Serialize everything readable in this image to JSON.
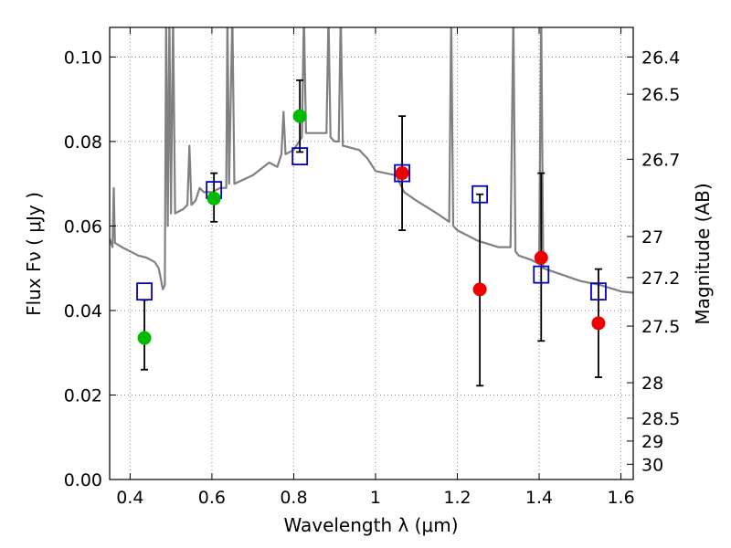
{
  "chart_data": {
    "type": "scatter",
    "title": "",
    "xlabel": "Wavelength  λ (μm)",
    "ylabel": "Flux  Fν  ( μJy )",
    "y2label": "Magnitude (AB)",
    "xlim": [
      0.35,
      1.63
    ],
    "ylim": [
      0.0,
      0.107
    ],
    "grid": true,
    "x_ticks": [
      0.4,
      0.6,
      0.8,
      1.0,
      1.2,
      1.4,
      1.6
    ],
    "x_tick_labels": [
      "0.4",
      "0.6",
      "0.8",
      "1",
      "1.2",
      "1.4",
      "1.6"
    ],
    "y_ticks": [
      0.0,
      0.02,
      0.04,
      0.06,
      0.08,
      0.1
    ],
    "y_tick_labels": [
      "0.00",
      "0.02",
      "0.04",
      "0.06",
      "0.08",
      "0.10"
    ],
    "y2_ticks": [
      {
        "flux": 0.1,
        "label": "26.4"
      },
      {
        "flux": 0.0912,
        "label": "26.5"
      },
      {
        "flux": 0.0758,
        "label": "26.7"
      },
      {
        "flux": 0.0575,
        "label": "27"
      },
      {
        "flux": 0.0478,
        "label": "27.2"
      },
      {
        "flux": 0.0363,
        "label": "27.5"
      },
      {
        "flux": 0.0229,
        "label": "28"
      },
      {
        "flux": 0.0145,
        "label": "28.5"
      },
      {
        "flux": 0.0091,
        "label": "29"
      },
      {
        "flux": 0.0036,
        "label": "30"
      }
    ],
    "colors": {
      "model": "#808080",
      "detected": "#00bb00",
      "measured": "#ee0000",
      "model_photometry": "#0000cc",
      "errorbar": "#000000",
      "grid": "#888888"
    },
    "series": [
      {
        "kind": "line",
        "points": [
          [
            0.35,
            0.057
          ],
          [
            0.357,
            0.055
          ],
          [
            0.36,
            0.069
          ],
          [
            0.363,
            0.056
          ],
          [
            0.38,
            0.055
          ],
          [
            0.4,
            0.054
          ],
          [
            0.42,
            0.053
          ],
          [
            0.44,
            0.0525
          ],
          [
            0.46,
            0.0515
          ],
          [
            0.47,
            0.05
          ],
          [
            0.48,
            0.045
          ],
          [
            0.485,
            0.046
          ],
          [
            0.488,
            0.11
          ],
          [
            0.492,
            0.06
          ],
          [
            0.496,
            0.11
          ],
          [
            0.5,
            0.063
          ],
          [
            0.505,
            0.11
          ],
          [
            0.51,
            0.063
          ],
          [
            0.53,
            0.064
          ],
          [
            0.54,
            0.065
          ],
          [
            0.545,
            0.079
          ],
          [
            0.55,
            0.065
          ],
          [
            0.56,
            0.066
          ],
          [
            0.57,
            0.069
          ],
          [
            0.58,
            0.068
          ],
          [
            0.6,
            0.068
          ],
          [
            0.62,
            0.069
          ],
          [
            0.635,
            0.069
          ],
          [
            0.638,
            0.11
          ],
          [
            0.642,
            0.07
          ],
          [
            0.65,
            0.11
          ],
          [
            0.655,
            0.07
          ],
          [
            0.7,
            0.072
          ],
          [
            0.74,
            0.075
          ],
          [
            0.76,
            0.074
          ],
          [
            0.77,
            0.077
          ],
          [
            0.775,
            0.087
          ],
          [
            0.78,
            0.077
          ],
          [
            0.8,
            0.078
          ],
          [
            0.82,
            0.081
          ],
          [
            0.825,
            0.11
          ],
          [
            0.83,
            0.082
          ],
          [
            0.87,
            0.082
          ],
          [
            0.88,
            0.082
          ],
          [
            0.885,
            0.11
          ],
          [
            0.89,
            0.081
          ],
          [
            0.9,
            0.08
          ],
          [
            0.91,
            0.08
          ],
          [
            0.915,
            0.11
          ],
          [
            0.92,
            0.079
          ],
          [
            0.96,
            0.078
          ],
          [
            0.98,
            0.076
          ],
          [
            1.0,
            0.073
          ],
          [
            1.05,
            0.072
          ],
          [
            1.07,
            0.068
          ],
          [
            1.1,
            0.066
          ],
          [
            1.15,
            0.063
          ],
          [
            1.18,
            0.061
          ],
          [
            1.185,
            0.11
          ],
          [
            1.19,
            0.06
          ],
          [
            1.2,
            0.059
          ],
          [
            1.25,
            0.0565
          ],
          [
            1.3,
            0.055
          ],
          [
            1.33,
            0.055
          ],
          [
            1.337,
            0.11
          ],
          [
            1.342,
            0.054
          ],
          [
            1.35,
            0.053
          ],
          [
            1.38,
            0.052
          ],
          [
            1.4,
            0.051
          ],
          [
            1.405,
            0.11
          ],
          [
            1.41,
            0.05
          ],
          [
            1.44,
            0.049
          ],
          [
            1.5,
            0.047
          ],
          [
            1.55,
            0.046
          ],
          [
            1.6,
            0.0445
          ],
          [
            1.63,
            0.0442
          ]
        ]
      },
      {
        "kind": "points",
        "marker": "circle",
        "points": [
          [
            0.435,
            0.0335
          ],
          [
            0.605,
            0.0665
          ],
          [
            0.815,
            0.086
          ]
        ]
      },
      {
        "kind": "points",
        "marker": "circle",
        "points": [
          [
            1.065,
            0.0725
          ],
          [
            1.255,
            0.045
          ],
          [
            1.405,
            0.0525
          ],
          [
            1.545,
            0.037
          ]
        ]
      },
      {
        "kind": "points",
        "marker": "open-square",
        "points": [
          [
            0.435,
            0.0445
          ],
          [
            0.605,
            0.0685
          ],
          [
            0.815,
            0.0765
          ],
          [
            1.065,
            0.0725
          ],
          [
            1.255,
            0.0675
          ],
          [
            1.405,
            0.0485
          ],
          [
            1.545,
            0.0445
          ]
        ]
      },
      {
        "kind": "errorbars",
        "points": [
          {
            "x": 0.435,
            "low": 0.026,
            "high": 0.0425
          },
          {
            "x": 0.605,
            "low": 0.061,
            "high": 0.0725
          },
          {
            "x": 0.815,
            "low": 0.0775,
            "high": 0.0945
          },
          {
            "x": 1.065,
            "low": 0.059,
            "high": 0.086
          },
          {
            "x": 1.255,
            "low": 0.0222,
            "high": 0.0675
          },
          {
            "x": 1.405,
            "low": 0.0328,
            "high": 0.0725
          },
          {
            "x": 1.545,
            "low": 0.0242,
            "high": 0.0498
          }
        ]
      }
    ]
  }
}
